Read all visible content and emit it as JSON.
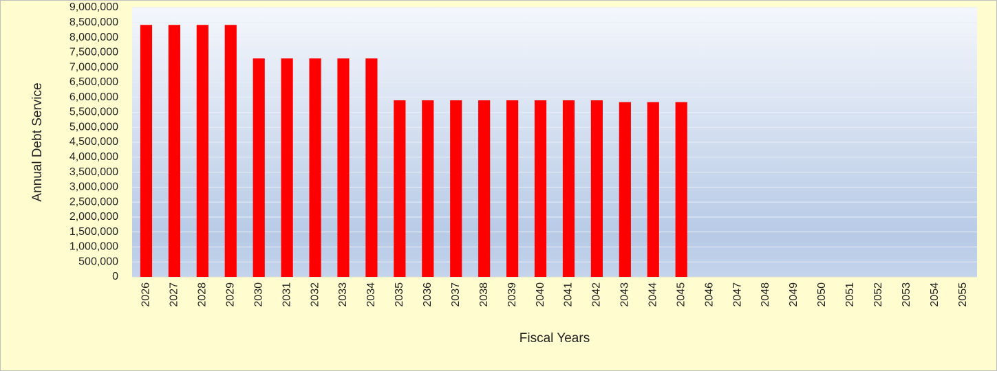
{
  "chart_data": {
    "type": "bar",
    "y_label": "Annual Debt Service",
    "x_label": "Fiscal Years",
    "categories": [
      "2026",
      "2027",
      "2028",
      "2029",
      "2030",
      "2031",
      "2032",
      "2033",
      "2034",
      "2035",
      "2036",
      "2037",
      "2038",
      "2039",
      "2040",
      "2041",
      "2042",
      "2043",
      "2044",
      "2045",
      "2046",
      "2047",
      "2048",
      "2049",
      "2050",
      "2051",
      "2052",
      "2053",
      "2054",
      "2055"
    ],
    "values": [
      8420000,
      8420000,
      8420000,
      8420000,
      7300000,
      7300000,
      7300000,
      7300000,
      7300000,
      5900000,
      5900000,
      5900000,
      5900000,
      5900000,
      5900000,
      5900000,
      5900000,
      5840000,
      5840000,
      5840000,
      null,
      null,
      null,
      null,
      null,
      null,
      null,
      null,
      null,
      null
    ],
    "color": "#ff0000",
    "ylim": [
      0,
      9000000
    ],
    "yticks": [
      0,
      {
        "value": 500000,
        "label": "500,000"
      },
      {
        "value": 1000000,
        "label": "1,000,000"
      },
      {
        "value": 1500000,
        "label": "1,500,000"
      },
      {
        "value": 2000000,
        "label": "2,000,000"
      },
      {
        "value": 2500000,
        "label": "2,500,000"
      },
      {
        "value": 3000000,
        "label": "3,000,000"
      },
      {
        "value": 3500000,
        "label": "3,500,000"
      },
      {
        "value": 4000000,
        "label": "4,000,000"
      },
      {
        "value": 4500000,
        "label": "4,500,000"
      },
      {
        "value": 5000000,
        "label": "5,000,000"
      },
      {
        "value": 5500000,
        "label": "5,500,000"
      },
      {
        "value": 6000000,
        "label": "6,000,000"
      },
      {
        "value": 6500000,
        "label": "6,500,000"
      },
      {
        "value": 7000000,
        "label": "7,000,000"
      },
      {
        "value": 7500000,
        "label": "7,500,000"
      },
      {
        "value": 8000000,
        "label": "8,000,000"
      },
      {
        "value": 8500000,
        "label": "8,500,000"
      },
      {
        "value": 9000000,
        "label": "9,000,000"
      }
    ],
    "grid": true
  }
}
